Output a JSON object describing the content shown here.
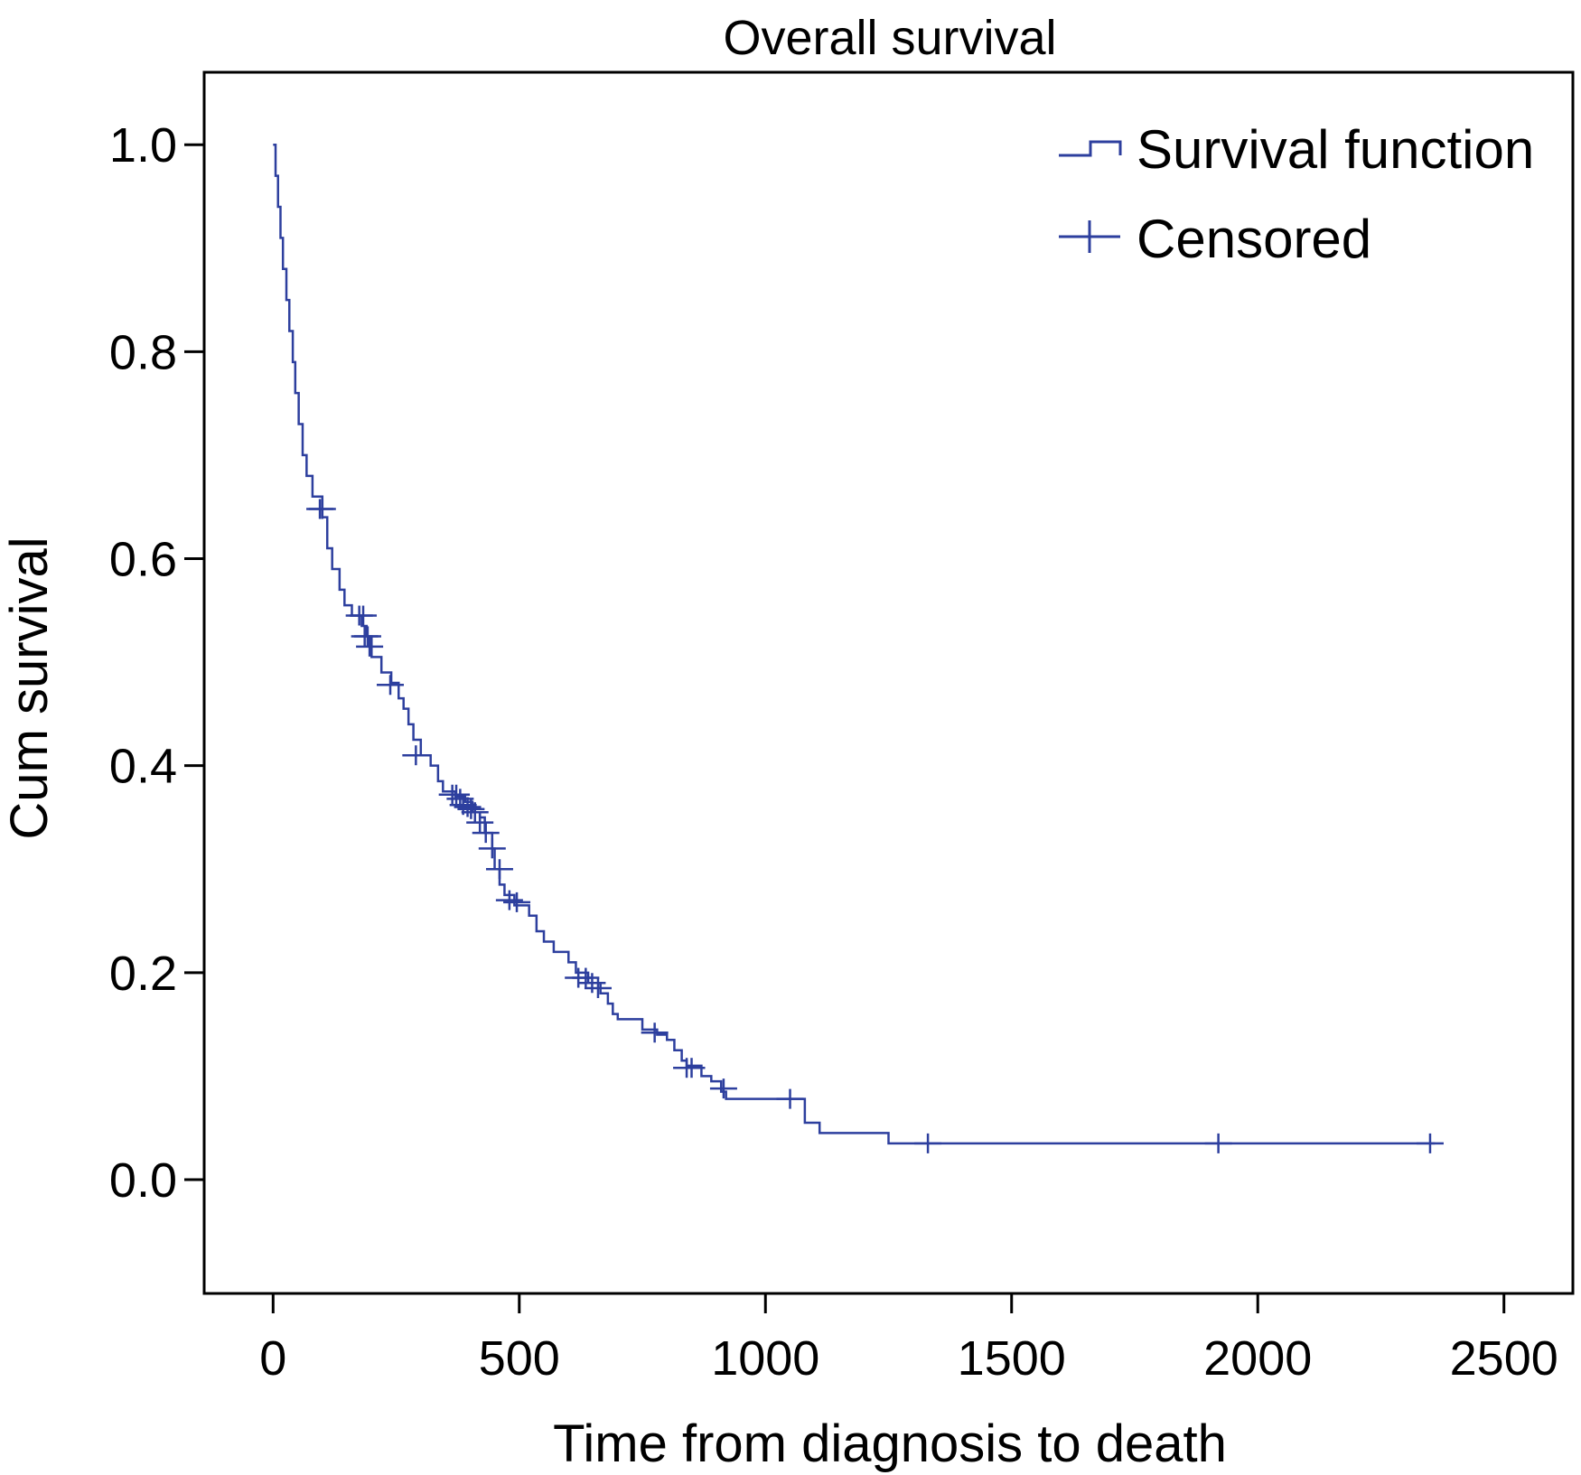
{
  "colors": {
    "curve": "#2d3f9e",
    "axis": "#000000",
    "background": "#ffffff"
  },
  "chart_data": {
    "type": "line",
    "subtype": "kaplan-meier step",
    "title": "Overall survival",
    "xlabel": "Time from diagnosis to death",
    "ylabel": "Cum survival",
    "xlim": [
      -140,
      2640
    ],
    "ylim": [
      -0.11,
      1.07
    ],
    "xticks": [
      0,
      500,
      1000,
      1500,
      2000,
      2500
    ],
    "yticks": [
      0.0,
      0.2,
      0.4,
      0.6,
      0.8,
      1.0
    ],
    "xtick_labels": [
      "0",
      "500",
      "1000",
      "1500",
      "2000",
      "2500"
    ],
    "ytick_labels": [
      "0.0",
      "0.2",
      "0.4",
      "0.6",
      "0.8",
      "1.0"
    ],
    "grid": false,
    "legend": {
      "position": "top-right",
      "entries": [
        {
          "label": "Survival function",
          "marker": "step-line"
        },
        {
          "label": "Censored",
          "marker": "plus"
        }
      ]
    },
    "series": [
      {
        "name": "Survival function",
        "steps": [
          [
            0,
            1.0
          ],
          [
            5,
            0.97
          ],
          [
            10,
            0.94
          ],
          [
            15,
            0.91
          ],
          [
            20,
            0.88
          ],
          [
            27,
            0.85
          ],
          [
            33,
            0.82
          ],
          [
            40,
            0.79
          ],
          [
            45,
            0.76
          ],
          [
            52,
            0.73
          ],
          [
            60,
            0.7
          ],
          [
            68,
            0.68
          ],
          [
            80,
            0.66
          ],
          [
            100,
            0.64
          ],
          [
            110,
            0.61
          ],
          [
            120,
            0.59
          ],
          [
            135,
            0.57
          ],
          [
            145,
            0.555
          ],
          [
            160,
            0.545
          ],
          [
            180,
            0.535
          ],
          [
            190,
            0.525
          ],
          [
            200,
            0.505
          ],
          [
            220,
            0.49
          ],
          [
            240,
            0.48
          ],
          [
            255,
            0.465
          ],
          [
            265,
            0.455
          ],
          [
            275,
            0.44
          ],
          [
            285,
            0.425
          ],
          [
            300,
            0.41
          ],
          [
            320,
            0.4
          ],
          [
            335,
            0.385
          ],
          [
            345,
            0.375
          ],
          [
            370,
            0.37
          ],
          [
            390,
            0.365
          ],
          [
            405,
            0.355
          ],
          [
            420,
            0.35
          ],
          [
            430,
            0.335
          ],
          [
            445,
            0.32
          ],
          [
            450,
            0.3
          ],
          [
            460,
            0.285
          ],
          [
            470,
            0.275
          ],
          [
            490,
            0.265
          ],
          [
            520,
            0.255
          ],
          [
            535,
            0.24
          ],
          [
            550,
            0.23
          ],
          [
            570,
            0.22
          ],
          [
            600,
            0.21
          ],
          [
            615,
            0.2
          ],
          [
            640,
            0.19
          ],
          [
            665,
            0.18
          ],
          [
            680,
            0.17
          ],
          [
            690,
            0.16
          ],
          [
            700,
            0.155
          ],
          [
            750,
            0.145
          ],
          [
            780,
            0.14
          ],
          [
            800,
            0.135
          ],
          [
            815,
            0.125
          ],
          [
            830,
            0.115
          ],
          [
            840,
            0.11
          ],
          [
            870,
            0.1
          ],
          [
            890,
            0.095
          ],
          [
            910,
            0.085
          ],
          [
            920,
            0.078
          ],
          [
            1060,
            0.078
          ],
          [
            1080,
            0.055
          ],
          [
            1110,
            0.045
          ],
          [
            1250,
            0.035
          ],
          [
            2360,
            0.035
          ]
        ]
      },
      {
        "name": "Censored",
        "points": [
          [
            95,
            0.648
          ],
          [
            100,
            0.648
          ],
          [
            175,
            0.545
          ],
          [
            183,
            0.545
          ],
          [
            186,
            0.525
          ],
          [
            192,
            0.525
          ],
          [
            196,
            0.515
          ],
          [
            238,
            0.478
          ],
          [
            290,
            0.41
          ],
          [
            364,
            0.372
          ],
          [
            372,
            0.372
          ],
          [
            380,
            0.368
          ],
          [
            386,
            0.362
          ],
          [
            395,
            0.36
          ],
          [
            402,
            0.358
          ],
          [
            410,
            0.355
          ],
          [
            420,
            0.345
          ],
          [
            432,
            0.335
          ],
          [
            445,
            0.32
          ],
          [
            460,
            0.3
          ],
          [
            480,
            0.27
          ],
          [
            495,
            0.268
          ],
          [
            620,
            0.195
          ],
          [
            635,
            0.195
          ],
          [
            648,
            0.19
          ],
          [
            660,
            0.185
          ],
          [
            775,
            0.142
          ],
          [
            840,
            0.108
          ],
          [
            850,
            0.108
          ],
          [
            915,
            0.088
          ],
          [
            1050,
            0.078
          ],
          [
            1330,
            0.035
          ],
          [
            1920,
            0.035
          ],
          [
            2350,
            0.035
          ]
        ]
      }
    ]
  }
}
